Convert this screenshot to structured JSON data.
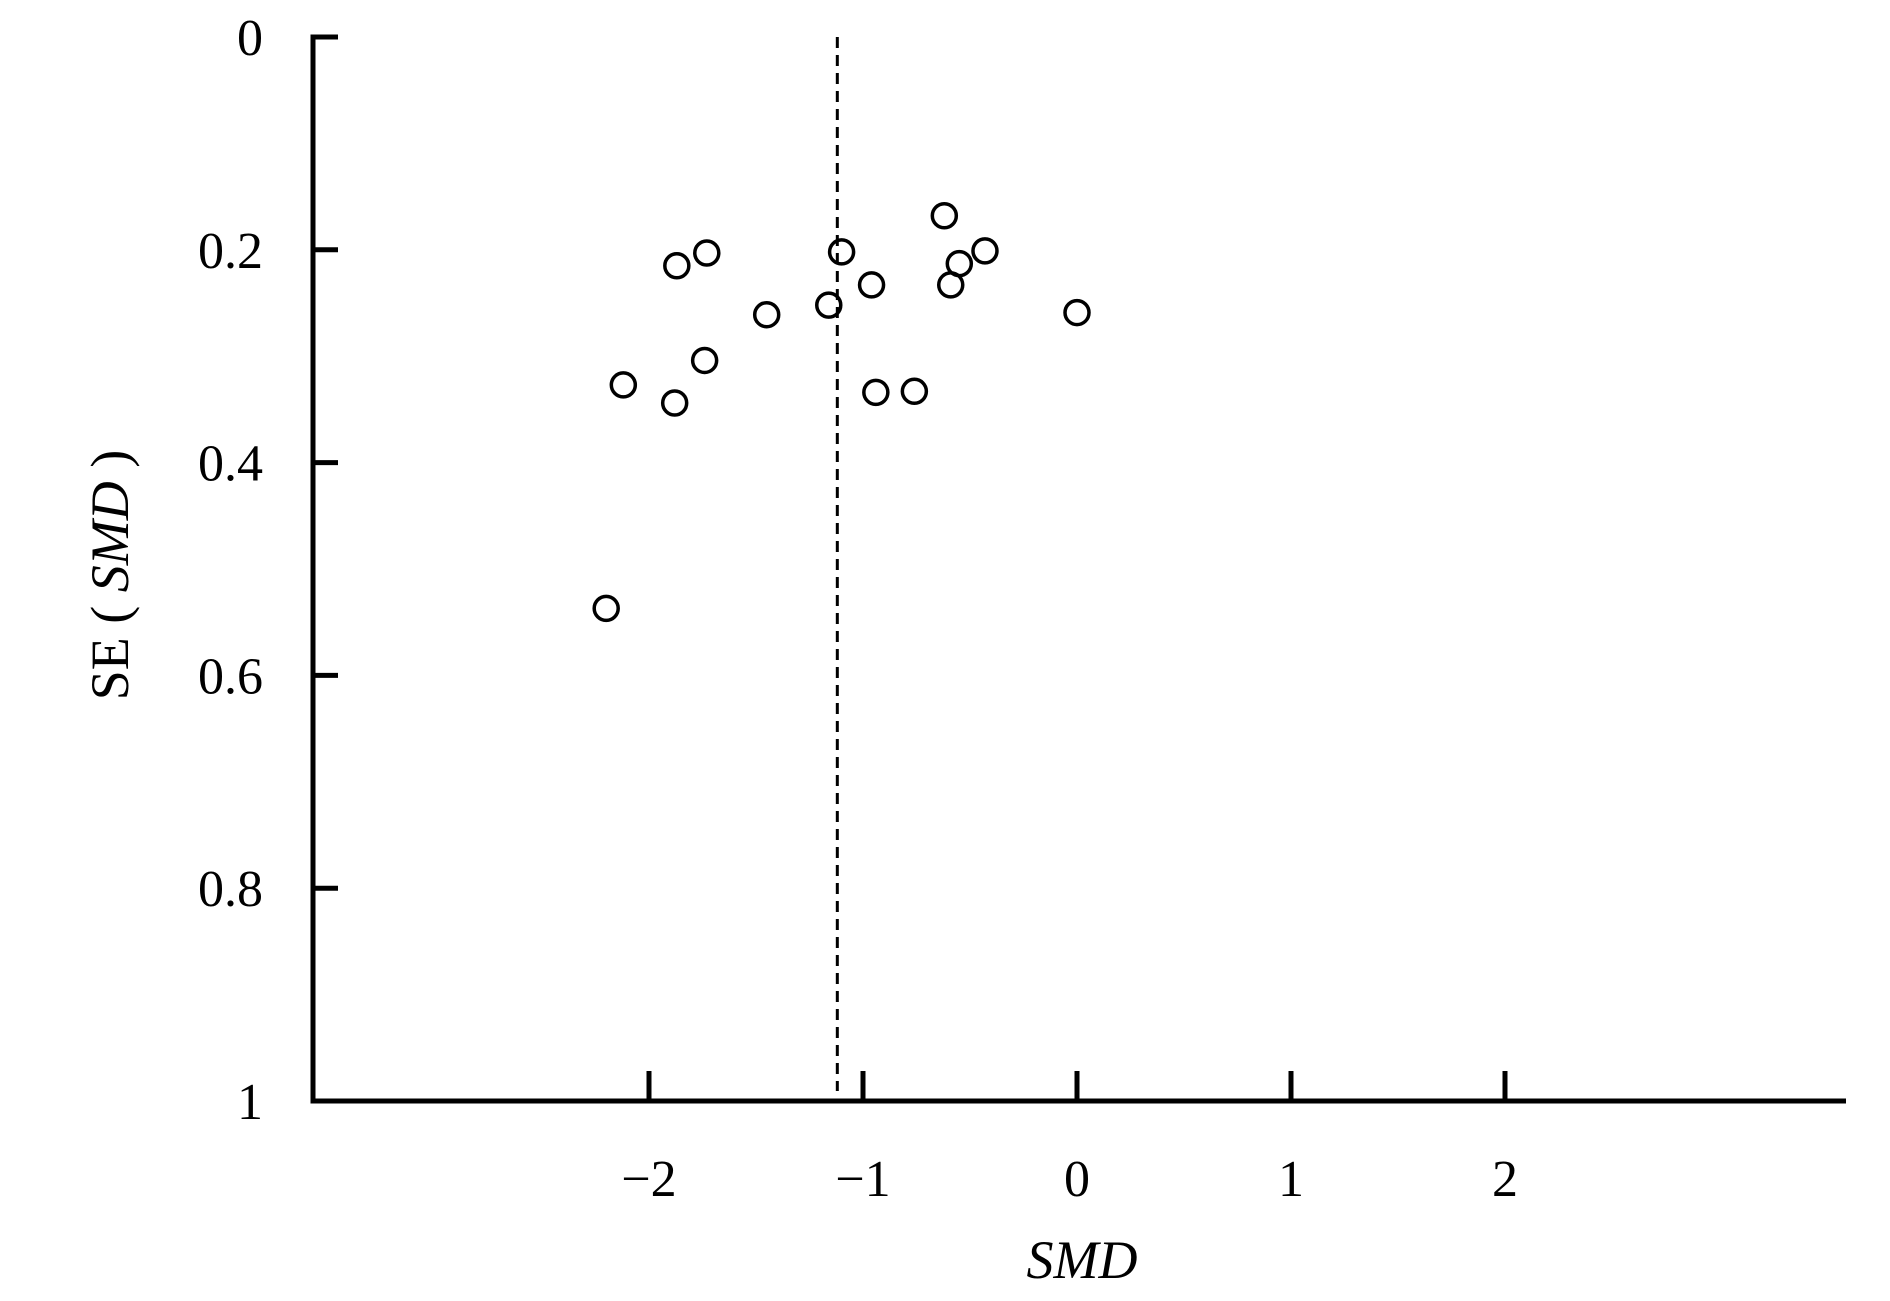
{
  "chart_data": {
    "type": "scatter",
    "title": "",
    "xlabel": "SMD",
    "ylabel": {
      "prefix": "SE",
      "open_paren": "(",
      "italic": "SMD",
      "close_paren": ")"
    },
    "xlim": [
      -3.1,
      3.6
    ],
    "ylim": [
      0,
      1
    ],
    "y_inverted": true,
    "x_ticks": [
      -2,
      -1,
      0,
      1,
      2
    ],
    "x_tick_labels": [
      "−2",
      "−1",
      "0",
      "1",
      "2"
    ],
    "y_ticks": [
      0,
      0.2,
      0.4,
      0.6,
      0.8,
      1
    ],
    "y_tick_labels": [
      "0",
      "0.2",
      "0.4",
      "0.6",
      "0.8",
      "1"
    ],
    "reference_line": {
      "x": -1.12,
      "style": "dashed"
    },
    "grid": false,
    "legend": "none",
    "marker": "open-circle",
    "points": [
      {
        "x": -0.62,
        "y": 0.168
      },
      {
        "x": -1.73,
        "y": 0.203
      },
      {
        "x": -1.1,
        "y": 0.202
      },
      {
        "x": -0.43,
        "y": 0.201
      },
      {
        "x": -1.87,
        "y": 0.215
      },
      {
        "x": -0.55,
        "y": 0.213
      },
      {
        "x": -0.96,
        "y": 0.233
      },
      {
        "x": -0.59,
        "y": 0.233
      },
      {
        "x": -1.16,
        "y": 0.252
      },
      {
        "x": -1.45,
        "y": 0.261
      },
      {
        "x": 0.0,
        "y": 0.259
      },
      {
        "x": -1.74,
        "y": 0.304
      },
      {
        "x": -2.12,
        "y": 0.327
      },
      {
        "x": -0.94,
        "y": 0.334
      },
      {
        "x": -0.76,
        "y": 0.333
      },
      {
        "x": -1.88,
        "y": 0.344
      },
      {
        "x": -2.2,
        "y": 0.537
      }
    ]
  }
}
